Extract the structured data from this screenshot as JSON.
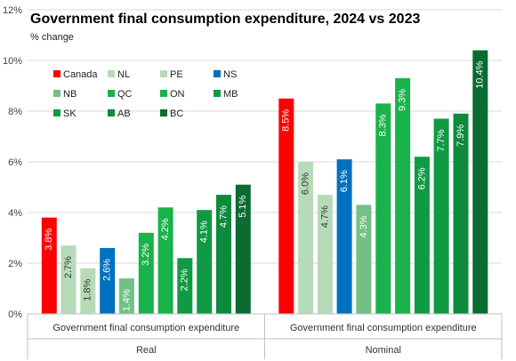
{
  "chart_data": {
    "type": "bar",
    "title": "Government final consumption expenditure, 2024 vs 2023",
    "subtitle": "% change",
    "y_unit": "%",
    "ylim": [
      0,
      12
    ],
    "y_ticks": [
      0,
      2,
      4,
      6,
      8,
      10,
      12
    ],
    "y_tick_labels": [
      "0%",
      "2%",
      "4%",
      "6%",
      "8%",
      "10%",
      "12%"
    ],
    "grid": true,
    "legend_position": "top-left",
    "groups": [
      {
        "label_top": "Government final consumption expenditure",
        "label_bottom": "Real"
      },
      {
        "label_top": "Government final consumption expenditure",
        "label_bottom": "Nominal"
      }
    ],
    "series": [
      {
        "name": "Canada",
        "color": "#ff0000",
        "label_color": "#ffffff",
        "values": [
          3.8,
          8.5
        ],
        "labels": [
          "3.8%",
          "8.5%"
        ]
      },
      {
        "name": "NL",
        "color": "#b7dbb9",
        "label_color": "#333333",
        "values": [
          2.7,
          6.0
        ],
        "labels": [
          "2.7%",
          "6.0%"
        ]
      },
      {
        "name": "PE",
        "color": "#b7dbb9",
        "label_color": "#333333",
        "values": [
          1.8,
          4.7
        ],
        "labels": [
          "1.8%",
          "4.7%"
        ]
      },
      {
        "name": "NS",
        "color": "#0070c0",
        "label_color": "#ffffff",
        "values": [
          2.6,
          6.1
        ],
        "labels": [
          "2.6%",
          "6.1%"
        ]
      },
      {
        "name": "NB",
        "color": "#73c084",
        "label_color": "#ffffff",
        "values": [
          1.4,
          4.3
        ],
        "labels": [
          "1.4%",
          "4.3%"
        ]
      },
      {
        "name": "QC",
        "color": "#19b24b",
        "label_color": "#ffffff",
        "values": [
          3.2,
          8.3
        ],
        "labels": [
          "3.2%",
          "8.3%"
        ]
      },
      {
        "name": "ON",
        "color": "#19b24b",
        "label_color": "#ffffff",
        "values": [
          4.2,
          9.3
        ],
        "labels": [
          "4.2%",
          "9.3%"
        ]
      },
      {
        "name": "MB",
        "color": "#109a43",
        "label_color": "#ffffff",
        "values": [
          2.2,
          6.2
        ],
        "labels": [
          "2.2%",
          "6.2%"
        ]
      },
      {
        "name": "SK",
        "color": "#109a43",
        "label_color": "#ffffff",
        "values": [
          4.1,
          7.7
        ],
        "labels": [
          "4.1%",
          "7.7%"
        ]
      },
      {
        "name": "AB",
        "color": "#0d8a3c",
        "label_color": "#ffffff",
        "values": [
          4.7,
          7.9
        ],
        "labels": [
          "4.7%",
          "7.9%"
        ]
      },
      {
        "name": "BC",
        "color": "#0a6b33",
        "label_color": "#ffffff",
        "values": [
          5.1,
          10.4
        ],
        "labels": [
          "5.1%",
          "10.4%"
        ]
      }
    ]
  }
}
